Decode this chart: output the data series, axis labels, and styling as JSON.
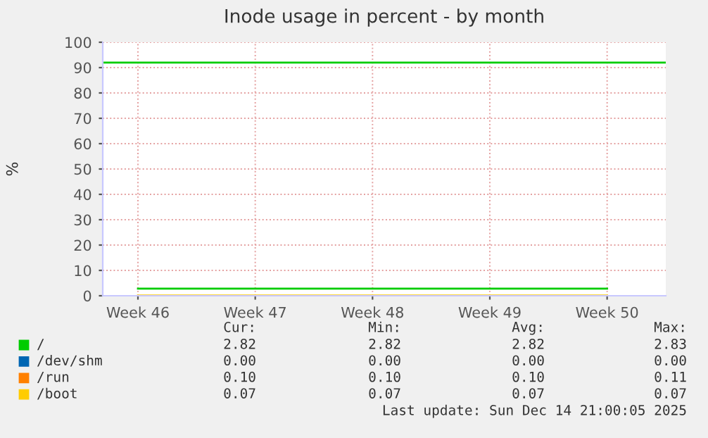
{
  "chart_data": {
    "type": "line",
    "title": "Inode usage in percent - by month",
    "ylabel": "%",
    "categories": [
      "Week 46",
      "Week 47",
      "Week 48",
      "Week 49",
      "Week 50"
    ],
    "series": [
      {
        "name": "/",
        "color": "#00cc00",
        "values": [
          2.8,
          2.8,
          2.8,
          2.8,
          2.8
        ]
      },
      {
        "name": "/dev/shm",
        "color": "#0066b3",
        "values": [
          null,
          null,
          null,
          null,
          null
        ]
      },
      {
        "name": "/run",
        "color": "#ff8000",
        "values": [
          null,
          null,
          null,
          null,
          null
        ]
      },
      {
        "name": "/boot",
        "color": "#ffcc00",
        "values": [
          0.1,
          0.1,
          0.1,
          0.1,
          0.1
        ]
      }
    ],
    "ylim": [
      0,
      100
    ],
    "yticks": [
      0,
      10,
      20,
      30,
      40,
      50,
      60,
      70,
      80,
      90,
      100
    ],
    "ref_lines": [
      {
        "axis": "y",
        "value": 92,
        "color": "#00cc00"
      }
    ],
    "grid": true,
    "legend": "bottom",
    "marker": "none",
    "line_style": "solid",
    "annotations": [
      "Cur:",
      "Min:",
      "Avg:",
      "Max:",
      "2.82",
      "2.82",
      "2.82",
      "2.83",
      "0.00",
      "0.00",
      "0.00",
      "0.00",
      "0.10",
      "0.10",
      "0.10",
      "0.11",
      "0.07",
      "0.07",
      "0.07",
      "0.07",
      "Last update: Sun Dec 14 21:00:05 2025"
    ]
  }
}
